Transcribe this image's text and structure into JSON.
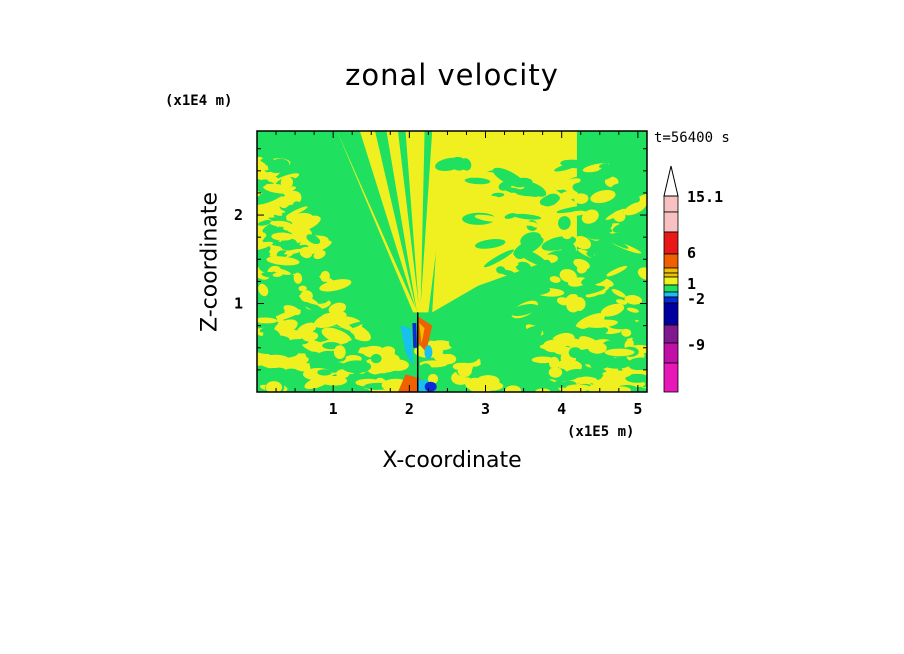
{
  "title": "zonal velocity",
  "time_label": "t=56400 s",
  "colors": {
    "negative_large": "#e818b8",
    "negative_mid": "#c010a8",
    "negative_small": "#801890",
    "navy": "#0000a0",
    "blue": "#0a2ad8",
    "cyan": "#18c0f0",
    "green": "#20e060",
    "yellow": "#f0f020",
    "light_orange": "#f0c000",
    "orange": "#f06000",
    "red": "#e81818",
    "pink": "#f8c0c0"
  },
  "chart_data": {
    "type": "heatmap",
    "title": "zonal velocity",
    "xlabel": "X-coordinate",
    "ylabel": "Z-coordinate",
    "x_unit": "(x1E5 m)",
    "y_unit": "(x1E4 m)",
    "xlim": [
      0,
      5.12
    ],
    "ylim": [
      0,
      2.95
    ],
    "x_ticks": [
      "1",
      "2",
      "3",
      "4",
      "5"
    ],
    "y_ticks": [
      "1",
      "2"
    ],
    "annotation": "t=56400 s",
    "colorbar": {
      "labels": [
        "15.1",
        "6",
        "1",
        "-2",
        "-9"
      ],
      "levels_top_to_bottom": [
        {
          "color": "#f8c0c0"
        },
        {
          "color": "#f8c0c0"
        },
        {
          "color": "#e81818"
        },
        {
          "color": "#f06000"
        },
        {
          "color": "#f0c000"
        },
        {
          "color": "#f0f020"
        },
        {
          "color": "#20e060"
        },
        {
          "color": "#18c0f0"
        },
        {
          "color": "#0a2ad8"
        },
        {
          "color": "#0000a0"
        },
        {
          "color": "#801890"
        },
        {
          "color": "#c010a8"
        },
        {
          "color": "#e818b8"
        }
      ]
    },
    "field_description": "two-valued background (green ~ -1 to 0, yellow ~ 0 to 1) with a narrow jet of strong positive (orange) and negative (blue) values near x = 2.1, z < 0.9"
  }
}
